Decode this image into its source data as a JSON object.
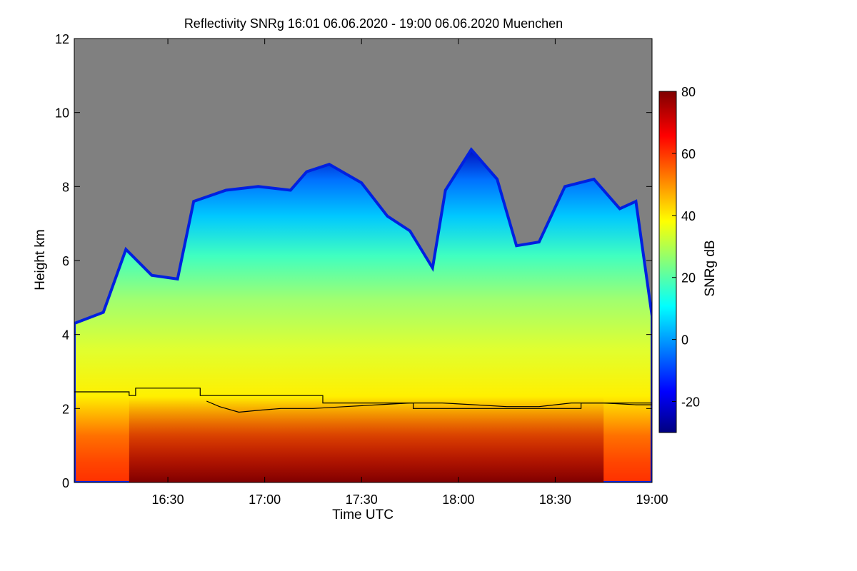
{
  "chart_data": {
    "type": "heatmap",
    "title": "Reflectivity SNRg   16:01 06.06.2020 - 19:00 06.06.2020 Muenchen",
    "xlabel": "Time UTC",
    "ylabel": "Height km",
    "xlim": [
      "16:01",
      "19:00"
    ],
    "ylim": [
      0,
      12
    ],
    "x_ticks": [
      "16:30",
      "17:00",
      "17:30",
      "18:00",
      "18:30",
      "19:00"
    ],
    "y_ticks": [
      "0",
      "2",
      "4",
      "6",
      "8",
      "10",
      "12"
    ],
    "colorbar": {
      "label": "SNRg dB",
      "range": [
        -30,
        80
      ],
      "ticks": [
        "-20",
        "0",
        "20",
        "40",
        "60",
        "80"
      ],
      "colormap": "jet"
    },
    "background_color": "#808080",
    "echo_top_km": [
      {
        "t": "16:01",
        "h": 4.3
      },
      {
        "t": "16:10",
        "h": 4.6
      },
      {
        "t": "16:17",
        "h": 6.3
      },
      {
        "t": "16:25",
        "h": 5.6
      },
      {
        "t": "16:33",
        "h": 5.5
      },
      {
        "t": "16:38",
        "h": 7.6
      },
      {
        "t": "16:48",
        "h": 7.9
      },
      {
        "t": "16:58",
        "h": 8.0
      },
      {
        "t": "17:08",
        "h": 7.9
      },
      {
        "t": "17:13",
        "h": 8.4
      },
      {
        "t": "17:20",
        "h": 8.6
      },
      {
        "t": "17:30",
        "h": 8.1
      },
      {
        "t": "17:38",
        "h": 7.2
      },
      {
        "t": "17:45",
        "h": 6.8
      },
      {
        "t": "17:52",
        "h": 5.8
      },
      {
        "t": "17:56",
        "h": 7.9
      },
      {
        "t": "18:04",
        "h": 9.0
      },
      {
        "t": "18:12",
        "h": 8.2
      },
      {
        "t": "18:18",
        "h": 6.4
      },
      {
        "t": "18:25",
        "h": 6.5
      },
      {
        "t": "18:33",
        "h": 8.0
      },
      {
        "t": "18:42",
        "h": 8.2
      },
      {
        "t": "18:50",
        "h": 7.4
      },
      {
        "t": "18:55",
        "h": 7.6
      },
      {
        "t": "19:00",
        "h": 4.5
      }
    ],
    "low_level_core_km": 2.3,
    "lines": [
      {
        "name": "step",
        "points": [
          {
            "t": "16:01",
            "h": 2.45
          },
          {
            "t": "16:18",
            "h": 2.45
          },
          {
            "t": "16:18",
            "h": 2.35
          },
          {
            "t": "16:20",
            "h": 2.35
          },
          {
            "t": "16:20",
            "h": 2.55
          },
          {
            "t": "16:40",
            "h": 2.55
          },
          {
            "t": "16:40",
            "h": 2.35
          },
          {
            "t": "17:18",
            "h": 2.35
          },
          {
            "t": "17:18",
            "h": 2.15
          },
          {
            "t": "17:46",
            "h": 2.15
          },
          {
            "t": "17:46",
            "h": 2.0
          },
          {
            "t": "18:38",
            "h": 2.0
          },
          {
            "t": "18:38",
            "h": 2.15
          },
          {
            "t": "19:00",
            "h": 2.15
          }
        ]
      },
      {
        "name": "wavy",
        "points": [
          {
            "t": "16:42",
            "h": 2.2
          },
          {
            "t": "16:46",
            "h": 2.05
          },
          {
            "t": "16:52",
            "h": 1.9
          },
          {
            "t": "16:58",
            "h": 1.95
          },
          {
            "t": "17:05",
            "h": 2.0
          },
          {
            "t": "17:15",
            "h": 2.0
          },
          {
            "t": "17:25",
            "h": 2.05
          },
          {
            "t": "17:35",
            "h": 2.1
          },
          {
            "t": "17:45",
            "h": 2.15
          },
          {
            "t": "17:55",
            "h": 2.15
          },
          {
            "t": "18:05",
            "h": 2.1
          },
          {
            "t": "18:15",
            "h": 2.05
          },
          {
            "t": "18:25",
            "h": 2.05
          },
          {
            "t": "18:35",
            "h": 2.15
          },
          {
            "t": "18:45",
            "h": 2.15
          },
          {
            "t": "18:55",
            "h": 2.1
          },
          {
            "t": "19:00",
            "h": 2.1
          }
        ]
      }
    ]
  }
}
